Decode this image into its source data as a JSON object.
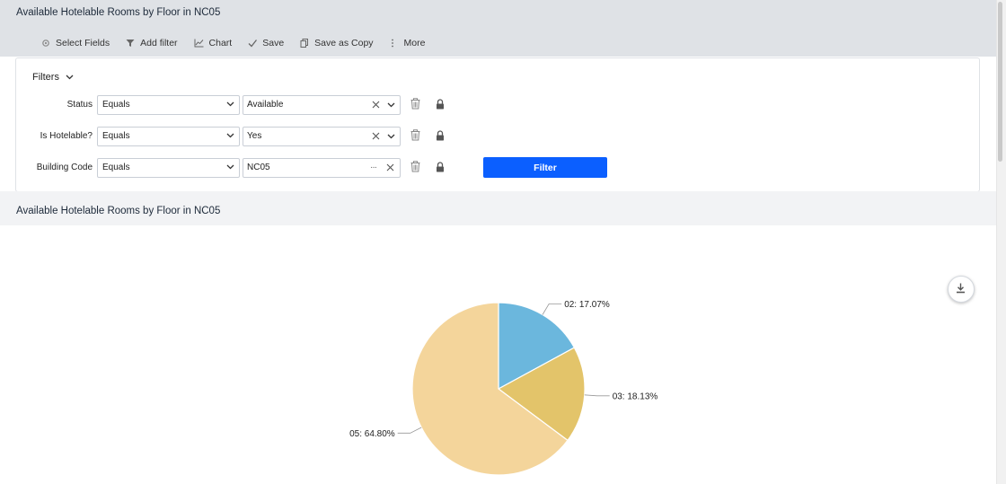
{
  "header": {
    "title": "Available Hotelable Rooms by Floor in NC05"
  },
  "toolbar": {
    "select_fields": "Select Fields",
    "add_filter": "Add filter",
    "chart": "Chart",
    "save": "Save",
    "save_as_copy": "Save as Copy",
    "more": "More"
  },
  "filters": {
    "title": "Filters",
    "rows": [
      {
        "label": "Status",
        "operator": "Equals",
        "value": "Available"
      },
      {
        "label": "Is Hotelable?",
        "operator": "Equals",
        "value": "Yes"
      },
      {
        "label": "Building Code",
        "operator": "Equals",
        "value": "NC05"
      }
    ],
    "filter_button": "Filter"
  },
  "section": {
    "title": "Available Hotelable Rooms by Floor in NC05"
  },
  "colors": {
    "primary": "#0b5fff",
    "header_bg": "#dfe2e6"
  },
  "chart_data": {
    "type": "pie",
    "title": "",
    "slices": [
      {
        "label": "02: 17.07%",
        "category": "02",
        "value": 17.07,
        "color": "#6bb7dd"
      },
      {
        "label": "03: 18.13%",
        "category": "03",
        "value": 18.13,
        "color": "#e3c46a"
      },
      {
        "label": "05: 64.80%",
        "category": "05",
        "value": 64.8,
        "color": "#f4d59b"
      }
    ],
    "legend": "none"
  }
}
